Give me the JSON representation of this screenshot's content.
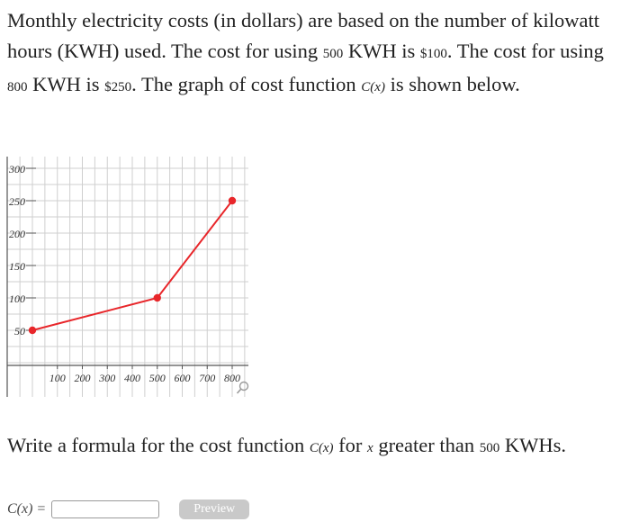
{
  "problem": {
    "t1": "Monthly electricity costs (in dollars) are based on the number of kilowatt hours (KWH) used. The cost for using ",
    "n1": "500",
    "t2": " KWH is ",
    "c1": "$100",
    "t3": ". The cost for using ",
    "n2": "800",
    "t4": " KWH is ",
    "c2": "$250",
    "t5": ". The graph of cost function ",
    "func": "C(x)",
    "t6": " is shown below."
  },
  "question": {
    "t1": "Write a formula for the cost function ",
    "func": "C(x)",
    "t2": " for ",
    "var": "x",
    "t3": " greater than ",
    "n": "500",
    "t4": " KWHs."
  },
  "answer": {
    "label": "C(x) =",
    "value": "",
    "preview_label": "Preview"
  },
  "colors": {
    "line": "#e8262a",
    "grid": "#cfcfcf",
    "axis": "#555555"
  },
  "icons": {
    "zoom": "magnifier-icon"
  },
  "chart_data": {
    "type": "line",
    "series": [
      {
        "x": [
          0,
          500,
          800
        ],
        "y": [
          50,
          100,
          250
        ]
      }
    ],
    "xticks": [
      100,
      200,
      300,
      400,
      500,
      600,
      700,
      800
    ],
    "yticks": [
      50,
      100,
      150,
      200,
      250,
      300
    ],
    "xlim": [
      -50,
      850
    ],
    "ylim": [
      -20,
      320
    ],
    "grid": true
  }
}
